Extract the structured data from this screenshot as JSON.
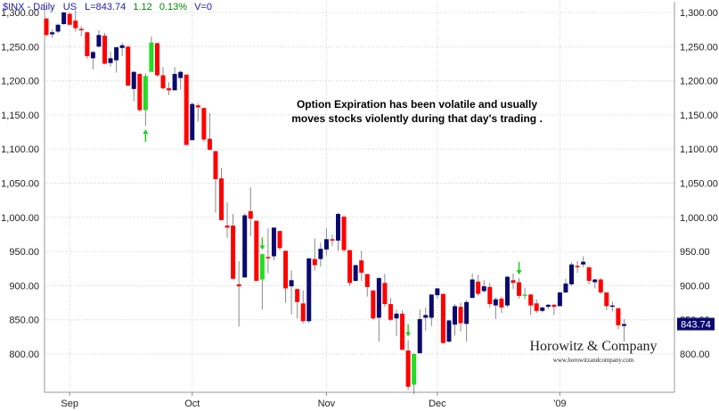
{
  "header": {
    "symbol": "$INX - Daily",
    "market": "US",
    "last": "L=843.74",
    "change": "1.12",
    "change_pct": "0.13%",
    "volume": "V=0"
  },
  "annotation": {
    "line1": "Option Expiration has been volatile and usually",
    "line2": "moves stocks violently during that day's trading ."
  },
  "branding": {
    "name": "Horowitz & Company",
    "url": "www.horowitzandcompany.com"
  },
  "colors": {
    "up": "#0a0a6e",
    "down": "#ff0000",
    "expiration": "#22dd22",
    "arrow": "#22cc22",
    "grid": "#cfcfcf",
    "text": "#222222",
    "header_blue": "#1a1aa6",
    "header_green": "#008800",
    "price_box": "#0a0a6e"
  },
  "chart_data": {
    "type": "candlestick",
    "title": "$INX - Daily",
    "ylim": [
      750,
      1305
    ],
    "yticks": [
      "800.00",
      "850.00",
      "900.00",
      "950.00",
      "1,000.00",
      "1,050.00",
      "1,100.00",
      "1,150.00",
      "1,200.00",
      "1,250.00",
      "1,300.00"
    ],
    "ytick_values": [
      800,
      850,
      900,
      950,
      1000,
      1050,
      1100,
      1150,
      1200,
      1250,
      1300
    ],
    "month_labels": [
      {
        "label": "Sep",
        "index": 4
      },
      {
        "label": "Oct",
        "index": 25
      },
      {
        "label": "Nov",
        "index": 48
      },
      {
        "label": "Dec",
        "index": 67
      },
      {
        "label": "'09",
        "index": 88
      }
    ],
    "last_price": "843.74",
    "last_value": 843.74,
    "grid": true,
    "candles": [
      {
        "date": "2008-08-25",
        "o": 1291,
        "h": 1293,
        "l": 1265,
        "c": 1267
      },
      {
        "date": "2008-08-26",
        "o": 1268,
        "h": 1275,
        "l": 1263,
        "c": 1271
      },
      {
        "date": "2008-08-27",
        "o": 1272,
        "h": 1284,
        "l": 1270,
        "c": 1282
      },
      {
        "date": "2008-08-28",
        "o": 1283,
        "h": 1301,
        "l": 1282,
        "c": 1300
      },
      {
        "date": "2008-08-29",
        "o": 1298,
        "h": 1300,
        "l": 1282,
        "c": 1282
      },
      {
        "date": "2008-09-02",
        "o": 1288,
        "h": 1303,
        "l": 1272,
        "c": 1277
      },
      {
        "date": "2008-09-03",
        "o": 1276,
        "h": 1280,
        "l": 1265,
        "c": 1274
      },
      {
        "date": "2008-09-04",
        "o": 1271,
        "h": 1272,
        "l": 1232,
        "c": 1236
      },
      {
        "date": "2008-09-05",
        "o": 1233,
        "h": 1244,
        "l": 1217,
        "c": 1242
      },
      {
        "date": "2008-09-08",
        "o": 1250,
        "h": 1274,
        "l": 1249,
        "c": 1267
      },
      {
        "date": "2008-09-09",
        "o": 1266,
        "h": 1270,
        "l": 1224,
        "c": 1225
      },
      {
        "date": "2008-09-10",
        "o": 1226,
        "h": 1243,
        "l": 1221,
        "c": 1233
      },
      {
        "date": "2008-09-11",
        "o": 1230,
        "h": 1250,
        "l": 1212,
        "c": 1249
      },
      {
        "date": "2008-09-12",
        "o": 1248,
        "h": 1256,
        "l": 1236,
        "c": 1252
      },
      {
        "date": "2008-09-15",
        "o": 1250,
        "h": 1251,
        "l": 1192,
        "c": 1193
      },
      {
        "date": "2008-09-16",
        "o": 1188,
        "h": 1214,
        "l": 1170,
        "c": 1213
      },
      {
        "date": "2008-09-17",
        "o": 1210,
        "h": 1211,
        "l": 1155,
        "c": 1157
      },
      {
        "date": "2008-09-18",
        "o": 1157,
        "h": 1211,
        "l": 1134,
        "c": 1207,
        "exp": true
      },
      {
        "date": "2008-09-19",
        "o": 1213,
        "h": 1265,
        "l": 1213,
        "c": 1256,
        "exp": true
      },
      {
        "date": "2008-09-22",
        "o": 1255,
        "h": 1256,
        "l": 1206,
        "c": 1208
      },
      {
        "date": "2008-09-23",
        "o": 1208,
        "h": 1220,
        "l": 1187,
        "c": 1189
      },
      {
        "date": "2008-09-24",
        "o": 1189,
        "h": 1198,
        "l": 1179,
        "c": 1186
      },
      {
        "date": "2008-09-25",
        "o": 1186,
        "h": 1220,
        "l": 1186,
        "c": 1210
      },
      {
        "date": "2008-09-26",
        "o": 1204,
        "h": 1215,
        "l": 1187,
        "c": 1213
      },
      {
        "date": "2008-09-29",
        "o": 1209,
        "h": 1209,
        "l": 1106,
        "c": 1106
      },
      {
        "date": "2008-09-30",
        "o": 1113,
        "h": 1168,
        "l": 1113,
        "c": 1166
      },
      {
        "date": "2008-10-01",
        "o": 1164,
        "h": 1167,
        "l": 1140,
        "c": 1161
      },
      {
        "date": "2008-10-02",
        "o": 1160,
        "h": 1161,
        "l": 1111,
        "c": 1114
      },
      {
        "date": "2008-10-03",
        "o": 1115,
        "h": 1153,
        "l": 1098,
        "c": 1099
      },
      {
        "date": "2008-10-06",
        "o": 1097,
        "h": 1097,
        "l": 1007,
        "c": 1056
      },
      {
        "date": "2008-10-07",
        "o": 1057,
        "h": 1072,
        "l": 996,
        "c": 996
      },
      {
        "date": "2008-10-08",
        "o": 988,
        "h": 1022,
        "l": 970,
        "c": 985
      },
      {
        "date": "2008-10-09",
        "o": 988,
        "h": 1005,
        "l": 909,
        "c": 910
      },
      {
        "date": "2008-10-10",
        "o": 902,
        "h": 936,
        "l": 840,
        "c": 899
      },
      {
        "date": "2008-10-13",
        "o": 912,
        "h": 1006,
        "l": 912,
        "c": 1003
      },
      {
        "date": "2008-10-14",
        "o": 1009,
        "h": 1044,
        "l": 972,
        "c": 998
      },
      {
        "date": "2008-10-15",
        "o": 995,
        "h": 995,
        "l": 908,
        "c": 907,
        "exp": true
      },
      {
        "date": "2008-10-16",
        "o": 909,
        "h": 947,
        "l": 865,
        "c": 946,
        "exp": true
      },
      {
        "date": "2008-10-17",
        "o": 942,
        "h": 984,
        "l": 918,
        "c": 940,
        "exp": true
      },
      {
        "date": "2008-10-20",
        "o": 943,
        "h": 985,
        "l": 937,
        "c": 985
      },
      {
        "date": "2008-10-21",
        "o": 980,
        "h": 980,
        "l": 952,
        "c": 955
      },
      {
        "date": "2008-10-22",
        "o": 951,
        "h": 951,
        "l": 875,
        "c": 896
      },
      {
        "date": "2008-10-23",
        "o": 899,
        "h": 922,
        "l": 858,
        "c": 908
      },
      {
        "date": "2008-10-24",
        "o": 895,
        "h": 896,
        "l": 852,
        "c": 876
      },
      {
        "date": "2008-10-27",
        "o": 874,
        "h": 893,
        "l": 845,
        "c": 848
      },
      {
        "date": "2008-10-28",
        "o": 848,
        "h": 940,
        "l": 845,
        "c": 940
      },
      {
        "date": "2008-10-29",
        "o": 939,
        "h": 969,
        "l": 922,
        "c": 930
      },
      {
        "date": "2008-10-30",
        "o": 939,
        "h": 963,
        "l": 928,
        "c": 954
      },
      {
        "date": "2008-10-31",
        "o": 953,
        "h": 984,
        "l": 944,
        "c": 968
      },
      {
        "date": "2008-11-03",
        "o": 968,
        "h": 975,
        "l": 958,
        "c": 966
      },
      {
        "date": "2008-11-04",
        "o": 966,
        "h": 1007,
        "l": 951,
        "c": 1005
      },
      {
        "date": "2008-11-05",
        "o": 1001,
        "h": 1003,
        "l": 949,
        "c": 952
      },
      {
        "date": "2008-11-06",
        "o": 952,
        "h": 952,
        "l": 899,
        "c": 904
      },
      {
        "date": "2008-11-07",
        "o": 907,
        "h": 931,
        "l": 906,
        "c": 930
      },
      {
        "date": "2008-11-10",
        "o": 937,
        "h": 951,
        "l": 907,
        "c": 919
      },
      {
        "date": "2008-11-11",
        "o": 917,
        "h": 917,
        "l": 884,
        "c": 898
      },
      {
        "date": "2008-11-12",
        "o": 893,
        "h": 893,
        "l": 850,
        "c": 852
      },
      {
        "date": "2008-11-13",
        "o": 853,
        "h": 913,
        "l": 818,
        "c": 911
      },
      {
        "date": "2008-11-14",
        "o": 904,
        "h": 917,
        "l": 869,
        "c": 873
      },
      {
        "date": "2008-11-17",
        "o": 873,
        "h": 882,
        "l": 848,
        "c": 850
      },
      {
        "date": "2008-11-18",
        "o": 852,
        "h": 865,
        "l": 826,
        "c": 859
      },
      {
        "date": "2008-11-19",
        "o": 859,
        "h": 864,
        "l": 806,
        "c": 806
      },
      {
        "date": "2008-11-20",
        "o": 805,
        "h": 820,
        "l": 747,
        "c": 752,
        "exp": true
      },
      {
        "date": "2008-11-21",
        "o": 755,
        "h": 801,
        "l": 741,
        "c": 800,
        "exp": true
      },
      {
        "date": "2008-11-24",
        "o": 801,
        "h": 865,
        "l": 801,
        "c": 851
      },
      {
        "date": "2008-11-25",
        "o": 853,
        "h": 868,
        "l": 834,
        "c": 857
      },
      {
        "date": "2008-11-26",
        "o": 853,
        "h": 887,
        "l": 841,
        "c": 887
      },
      {
        "date": "2008-11-28",
        "o": 886,
        "h": 896,
        "l": 881,
        "c": 896
      },
      {
        "date": "2008-12-01",
        "o": 888,
        "h": 888,
        "l": 815,
        "c": 816
      },
      {
        "date": "2008-12-02",
        "o": 818,
        "h": 850,
        "l": 817,
        "c": 849
      },
      {
        "date": "2008-12-03",
        "o": 843,
        "h": 873,
        "l": 827,
        "c": 870
      },
      {
        "date": "2008-12-04",
        "o": 869,
        "h": 875,
        "l": 833,
        "c": 845
      },
      {
        "date": "2008-12-05",
        "o": 844,
        "h": 879,
        "l": 818,
        "c": 876
      },
      {
        "date": "2008-12-08",
        "o": 882,
        "h": 918,
        "l": 882,
        "c": 909
      },
      {
        "date": "2008-12-09",
        "o": 906,
        "h": 916,
        "l": 885,
        "c": 888
      },
      {
        "date": "2008-12-10",
        "o": 892,
        "h": 908,
        "l": 890,
        "c": 899
      },
      {
        "date": "2008-12-11",
        "o": 898,
        "h": 904,
        "l": 868,
        "c": 873
      },
      {
        "date": "2008-12-12",
        "o": 871,
        "h": 883,
        "l": 851,
        "c": 880
      },
      {
        "date": "2008-12-15",
        "o": 881,
        "h": 884,
        "l": 860,
        "c": 868
      },
      {
        "date": "2008-12-16",
        "o": 871,
        "h": 914,
        "l": 868,
        "c": 913
      },
      {
        "date": "2008-12-17",
        "o": 908,
        "h": 918,
        "l": 895,
        "c": 904,
        "exp": true
      },
      {
        "date": "2008-12-18",
        "o": 905,
        "h": 911,
        "l": 881,
        "c": 885,
        "exp": true
      },
      {
        "date": "2008-12-19",
        "o": 886,
        "h": 897,
        "l": 880,
        "c": 887,
        "exp": true
      },
      {
        "date": "2008-12-22",
        "o": 887,
        "h": 887,
        "l": 857,
        "c": 871
      },
      {
        "date": "2008-12-23",
        "o": 874,
        "h": 880,
        "l": 860,
        "c": 863
      },
      {
        "date": "2008-12-24",
        "o": 863,
        "h": 869,
        "l": 861,
        "c": 868
      },
      {
        "date": "2008-12-26",
        "o": 869,
        "h": 873,
        "l": 866,
        "c": 872
      },
      {
        "date": "2008-12-29",
        "o": 872,
        "h": 873,
        "l": 857,
        "c": 869
      },
      {
        "date": "2008-12-30",
        "o": 870,
        "h": 891,
        "l": 870,
        "c": 890
      },
      {
        "date": "2008-12-31",
        "o": 890,
        "h": 910,
        "l": 889,
        "c": 903
      },
      {
        "date": "2009-01-02",
        "o": 902,
        "h": 934,
        "l": 900,
        "c": 931
      },
      {
        "date": "2009-01-05",
        "o": 929,
        "h": 936,
        "l": 919,
        "c": 927
      },
      {
        "date": "2009-01-06",
        "o": 931,
        "h": 943,
        "l": 927,
        "c": 935
      },
      {
        "date": "2009-01-07",
        "o": 927,
        "h": 927,
        "l": 902,
        "c": 907
      },
      {
        "date": "2009-01-08",
        "o": 905,
        "h": 910,
        "l": 896,
        "c": 909
      },
      {
        "date": "2009-01-09",
        "o": 909,
        "h": 911,
        "l": 888,
        "c": 890
      },
      {
        "date": "2009-01-12",
        "o": 890,
        "h": 890,
        "l": 864,
        "c": 870
      },
      {
        "date": "2009-01-13",
        "o": 869,
        "h": 877,
        "l": 862,
        "c": 871
      },
      {
        "date": "2009-01-14",
        "o": 867,
        "h": 867,
        "l": 836,
        "c": 842
      },
      {
        "date": "2009-01-15",
        "o": 841,
        "h": 851,
        "l": 818,
        "c": 843.74
      }
    ],
    "arrows": [
      {
        "index": 17,
        "dir": "up"
      },
      {
        "index": 37,
        "dir": "down"
      },
      {
        "index": 62,
        "dir": "down"
      },
      {
        "index": 81,
        "dir": "down"
      }
    ]
  }
}
